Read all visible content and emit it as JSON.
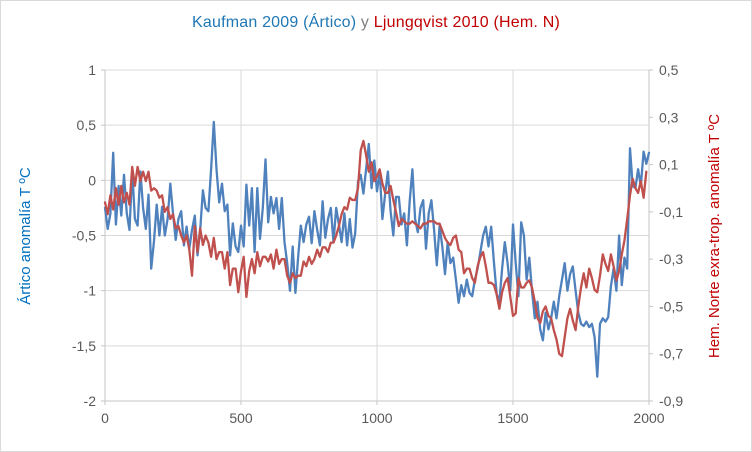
{
  "title": {
    "part1": "Kaufman 2009 (Ártico)",
    "connector": " y ",
    "part2": "Ljungqvist 2010 (Hem. N)"
  },
  "colors": {
    "title_blue": "#1F77B4",
    "title_gray": "#7F7F7F",
    "title_red": "#C00000",
    "series_blue": "#4F81BD",
    "series_red": "#C0504D",
    "gridline": "#D9D9D9",
    "axis_line": "#C6C6C6",
    "tick_text": "#595959",
    "left_label": "#0070C0",
    "right_label": "#C00000"
  },
  "chart_data": {
    "type": "line",
    "title": "Kaufman 2009 (Ártico) y Ljungqvist 2010 (Hem. N)",
    "grid": true,
    "legend": "none",
    "x": {
      "min": 0,
      "max": 2000,
      "tick_values": [
        0,
        500,
        1000,
        1500,
        2000
      ],
      "tick_labels": [
        "0",
        "500",
        "1000",
        "1500",
        "2000"
      ]
    },
    "y_left": {
      "label": "Ártico anomalía T ºC",
      "color": "#0070C0",
      "min": -2,
      "max": 1,
      "tick_values": [
        1,
        0.5,
        0,
        -0.5,
        -1,
        -1.5,
        -2
      ],
      "tick_labels": [
        "1",
        "0,5",
        "0",
        "-0,5",
        "-1",
        "-1,5",
        "-2"
      ]
    },
    "y_right": {
      "label": "Hem. Norte exra-trop. anomalía T ºC",
      "color": "#C00000",
      "min": -0.9,
      "max": 0.5,
      "tick_values": [
        0.5,
        0.3,
        0.1,
        -0.1,
        -0.3,
        -0.5,
        -0.7,
        -0.9
      ],
      "tick_labels": [
        "0,5",
        "0,3",
        "0,1",
        "-0,1",
        "-0,3",
        "-0,5",
        "-0,7",
        "-0,9"
      ]
    },
    "series": [
      {
        "name": "Kaufman 2009 (Ártico)",
        "axis": "left",
        "color": "#4F81BD",
        "x_start": 0,
        "x_step": 10,
        "values": [
          -0.25,
          -0.44,
          -0.3,
          0.25,
          -0.4,
          -0.05,
          -0.32,
          0.05,
          -0.3,
          -0.45,
          0.09,
          -0.35,
          -0.41,
          0.08,
          -0.25,
          -0.44,
          -0.13,
          -0.8,
          -0.55,
          -0.22,
          -0.5,
          -0.24,
          -0.5,
          -0.35,
          -0.03,
          -0.3,
          -0.54,
          -0.35,
          -0.28,
          -0.59,
          -0.42,
          -0.62,
          -0.45,
          -0.32,
          -0.68,
          -0.45,
          -0.09,
          -0.25,
          -0.28,
          0.1,
          0.53,
          0.1,
          -0.2,
          -0.03,
          -0.28,
          -0.22,
          -0.68,
          -0.39,
          -0.6,
          -0.65,
          -0.41,
          -0.6,
          -0.04,
          -0.41,
          -0.07,
          -0.65,
          -0.07,
          -0.53,
          -0.25,
          0.19,
          -0.38,
          -0.15,
          -0.3,
          -0.16,
          -0.44,
          -0.16,
          -0.56,
          -0.75,
          -1.0,
          -0.6,
          -1.02,
          -0.7,
          -0.41,
          -0.56,
          -0.4,
          -0.33,
          -0.57,
          -0.28,
          -0.45,
          -0.59,
          -0.19,
          -0.52,
          -0.35,
          -0.25,
          -0.56,
          -0.25,
          -0.4,
          -0.56,
          -0.3,
          -0.59,
          -0.35,
          -0.61,
          -0.48,
          -0.01,
          0.05,
          -0.12,
          0.1,
          0.33,
          -0.07,
          0.18,
          -0.1,
          0.08,
          -0.35,
          -0.12,
          0.08,
          -0.28,
          -0.5,
          -0.15,
          -0.15,
          -0.4,
          -0.3,
          -0.59,
          -0.2,
          0.1,
          -0.35,
          -0.47,
          -0.25,
          -0.18,
          -0.62,
          -0.3,
          -0.18,
          -0.45,
          -0.77,
          -0.41,
          -0.6,
          -0.85,
          -0.56,
          -0.75,
          -0.7,
          -0.9,
          -1.11,
          -0.95,
          -1.05,
          -0.9,
          -1.02,
          -1.05,
          -0.9,
          -0.8,
          -0.65,
          -0.5,
          -0.42,
          -0.6,
          -0.42,
          -0.75,
          -1.03,
          -1.1,
          -0.8,
          -0.56,
          -0.75,
          -1.0,
          -0.4,
          -0.75,
          -1.05,
          -0.38,
          -0.5,
          -0.9,
          -0.7,
          -1.0,
          -1.25,
          -1.1,
          -1.35,
          -1.45,
          -1.2,
          -1.35,
          -1.25,
          -1.1,
          -1.25,
          -1.05,
          -0.9,
          -0.75,
          -1.0,
          -0.85,
          -0.78,
          -1.0,
          -1.2,
          -1.3,
          -1.32,
          -1.28,
          -1.33,
          -1.3,
          -1.42,
          -1.78,
          -1.3,
          -1.25,
          -1.28,
          -1.24,
          -0.96,
          -0.8,
          -1.0,
          -0.5,
          -0.95,
          -0.7,
          -0.8,
          0.29,
          -0.05,
          -0.07,
          0.1,
          -0.05,
          0.26,
          0.15,
          0.25
        ]
      },
      {
        "name": "Ljungqvist 2010 (Hem. N)",
        "axis": "right",
        "color": "#C0504D",
        "x_start": 0,
        "x_step": 10,
        "values": [
          -0.06,
          -0.11,
          -0.03,
          -0.09,
          0.0,
          -0.07,
          0.01,
          -0.06,
          -0.02,
          -0.07,
          0.09,
          0.01,
          0.09,
          0.03,
          0.07,
          0.03,
          0.07,
          -0.01,
          0.0,
          -0.01,
          -0.04,
          -0.03,
          -0.1,
          -0.08,
          -0.13,
          -0.11,
          -0.17,
          -0.16,
          -0.2,
          -0.23,
          -0.2,
          -0.26,
          -0.37,
          -0.16,
          -0.27,
          -0.17,
          -0.24,
          -0.2,
          -0.23,
          -0.29,
          -0.21,
          -0.3,
          -0.27,
          -0.27,
          -0.34,
          -0.27,
          -0.41,
          -0.34,
          -0.34,
          -0.44,
          -0.35,
          -0.29,
          -0.46,
          -0.35,
          -0.3,
          -0.36,
          -0.27,
          -0.33,
          -0.29,
          -0.29,
          -0.31,
          -0.28,
          -0.34,
          -0.26,
          -0.32,
          -0.3,
          -0.3,
          -0.37,
          -0.4,
          -0.36,
          -0.38,
          -0.37,
          -0.37,
          -0.31,
          -0.33,
          -0.29,
          -0.32,
          -0.3,
          -0.26,
          -0.29,
          -0.25,
          -0.25,
          -0.27,
          -0.23,
          -0.23,
          -0.2,
          -0.16,
          -0.11,
          -0.08,
          -0.09,
          -0.04,
          -0.05,
          -0.05,
          0.0,
          0.16,
          0.2,
          0.14,
          0.07,
          0.11,
          0.03,
          0.05,
          0.08,
          0.02,
          -0.02,
          -0.02,
          0.01,
          -0.05,
          -0.1,
          -0.16,
          -0.13,
          -0.14,
          -0.15,
          -0.15,
          -0.14,
          -0.15,
          -0.16,
          -0.17,
          -0.15,
          -0.15,
          -0.14,
          -0.14,
          -0.14,
          -0.15,
          -0.15,
          -0.18,
          -0.21,
          -0.23,
          -0.24,
          -0.21,
          -0.2,
          -0.26,
          -0.27,
          -0.36,
          -0.34,
          -0.34,
          -0.38,
          -0.4,
          -0.33,
          -0.29,
          -0.27,
          -0.33,
          -0.4,
          -0.4,
          -0.41,
          -0.45,
          -0.51,
          -0.44,
          -0.4,
          -0.38,
          -0.46,
          -0.54,
          -0.53,
          -0.38,
          -0.42,
          -0.42,
          -0.4,
          -0.39,
          -0.42,
          -0.48,
          -0.55,
          -0.57,
          -0.52,
          -0.5,
          -0.54,
          -0.55,
          -0.6,
          -0.64,
          -0.7,
          -0.71,
          -0.63,
          -0.55,
          -0.51,
          -0.56,
          -0.6,
          -0.5,
          -0.42,
          -0.36,
          -0.42,
          -0.34,
          -0.38,
          -0.43,
          -0.44,
          -0.37,
          -0.28,
          -0.32,
          -0.35,
          -0.28,
          -0.33,
          -0.39,
          -0.35,
          -0.28,
          -0.22,
          -0.13,
          -0.03,
          0.04,
          0.0,
          -0.02,
          0.03,
          -0.04,
          0.07
        ]
      }
    ]
  }
}
